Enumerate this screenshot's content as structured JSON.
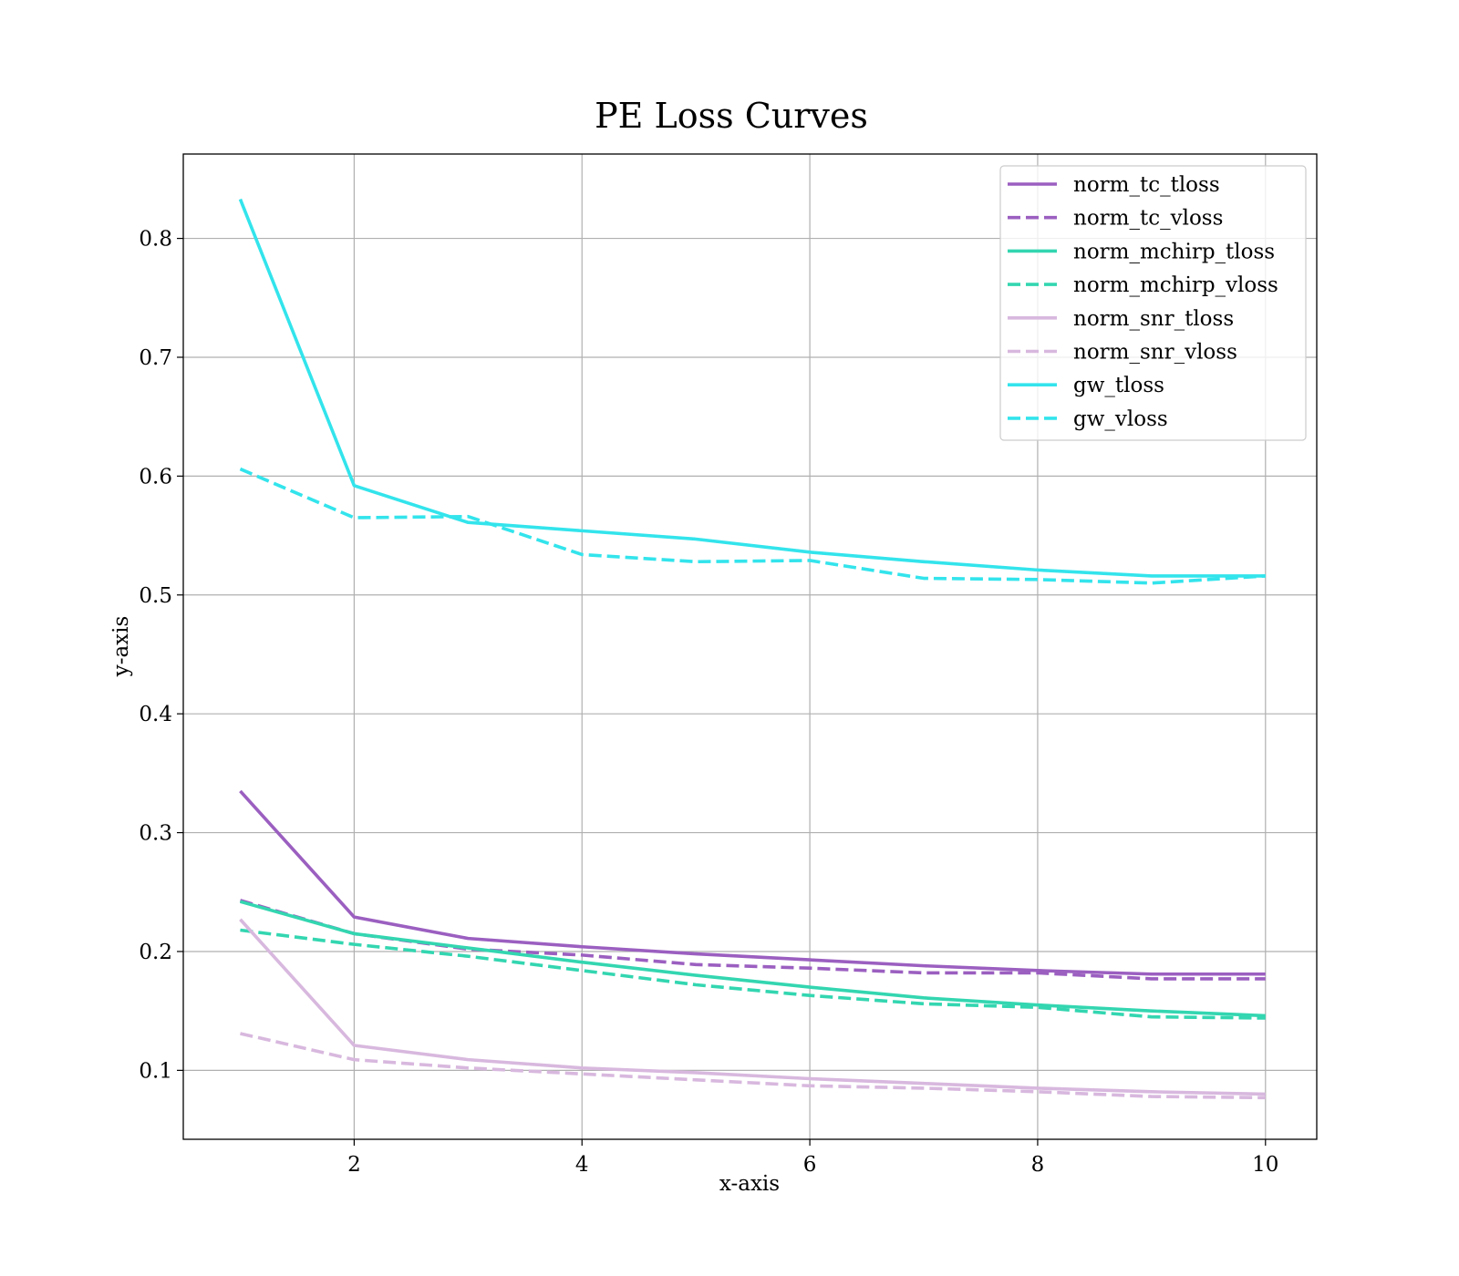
{
  "chart_data": {
    "type": "line",
    "title": "PE Loss Curves",
    "xlabel": "x-axis",
    "ylabel": "y-axis",
    "xlim": [
      0.5,
      10.45
    ],
    "ylim": [
      0.042,
      0.871
    ],
    "xticks": [
      2,
      4,
      6,
      8,
      10
    ],
    "yticks": [
      0.1,
      0.2,
      0.3,
      0.4,
      0.5,
      0.6,
      0.7,
      0.8
    ],
    "grid": true,
    "legend_position": "top-right",
    "x": [
      1,
      2,
      3,
      4,
      5,
      6,
      7,
      8,
      9,
      10
    ],
    "series": [
      {
        "name": "norm_tc_tloss",
        "color": "#9b5fc0",
        "style": "solid",
        "values": [
          0.335,
          0.229,
          0.211,
          0.204,
          0.198,
          0.193,
          0.188,
          0.184,
          0.181,
          0.181
        ]
      },
      {
        "name": "norm_tc_vloss",
        "color": "#9b5fc0",
        "style": "dashed",
        "values": [
          0.243,
          0.215,
          0.202,
          0.197,
          0.189,
          0.186,
          0.182,
          0.182,
          0.177,
          0.177
        ]
      },
      {
        "name": "norm_mchirp_tloss",
        "color": "#33d6b0",
        "style": "solid",
        "values": [
          0.242,
          0.215,
          0.203,
          0.191,
          0.18,
          0.17,
          0.161,
          0.155,
          0.15,
          0.146
        ]
      },
      {
        "name": "norm_mchirp_vloss",
        "color": "#33d6b0",
        "style": "dashed",
        "values": [
          0.218,
          0.206,
          0.196,
          0.184,
          0.172,
          0.163,
          0.156,
          0.153,
          0.145,
          0.144
        ]
      },
      {
        "name": "norm_snr_tloss",
        "color": "#d8b8de",
        "style": "solid",
        "values": [
          0.227,
          0.121,
          0.109,
          0.102,
          0.098,
          0.093,
          0.089,
          0.085,
          0.082,
          0.08
        ]
      },
      {
        "name": "norm_snr_vloss",
        "color": "#d8b8de",
        "style": "dashed",
        "values": [
          0.131,
          0.109,
          0.102,
          0.097,
          0.092,
          0.087,
          0.085,
          0.082,
          0.078,
          0.077
        ]
      },
      {
        "name": "gw_tloss",
        "color": "#33e4ec",
        "style": "solid",
        "values": [
          0.833,
          0.592,
          0.561,
          0.554,
          0.547,
          0.536,
          0.528,
          0.521,
          0.516,
          0.516
        ]
      },
      {
        "name": "gw_vloss",
        "color": "#33e4ec",
        "style": "dashed",
        "values": [
          0.606,
          0.565,
          0.566,
          0.534,
          0.528,
          0.529,
          0.514,
          0.513,
          0.51,
          0.516
        ]
      }
    ]
  }
}
